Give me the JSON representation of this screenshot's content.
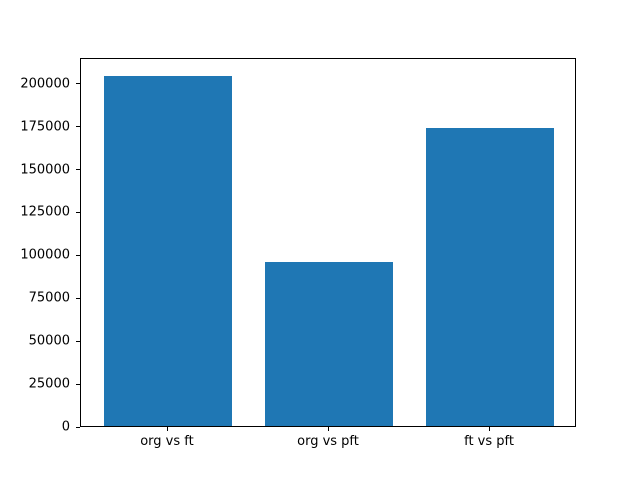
{
  "chart_data": {
    "type": "bar",
    "categories": [
      "org vs ft",
      "org vs pft",
      "ft vs pft"
    ],
    "values": [
      204000,
      95500,
      173500
    ],
    "title": "",
    "xlabel": "",
    "ylabel": "",
    "ylim": [
      0,
      215000
    ],
    "xlim": [
      -0.54,
      2.54
    ],
    "yticks": [
      0,
      25000,
      50000,
      75000,
      100000,
      125000,
      150000,
      175000,
      200000
    ],
    "bar_width_units": 0.8,
    "bar_color": "#1f77b4",
    "spine_color": "#000000",
    "background_color": "#ffffff",
    "grid": false,
    "legend": null
  }
}
